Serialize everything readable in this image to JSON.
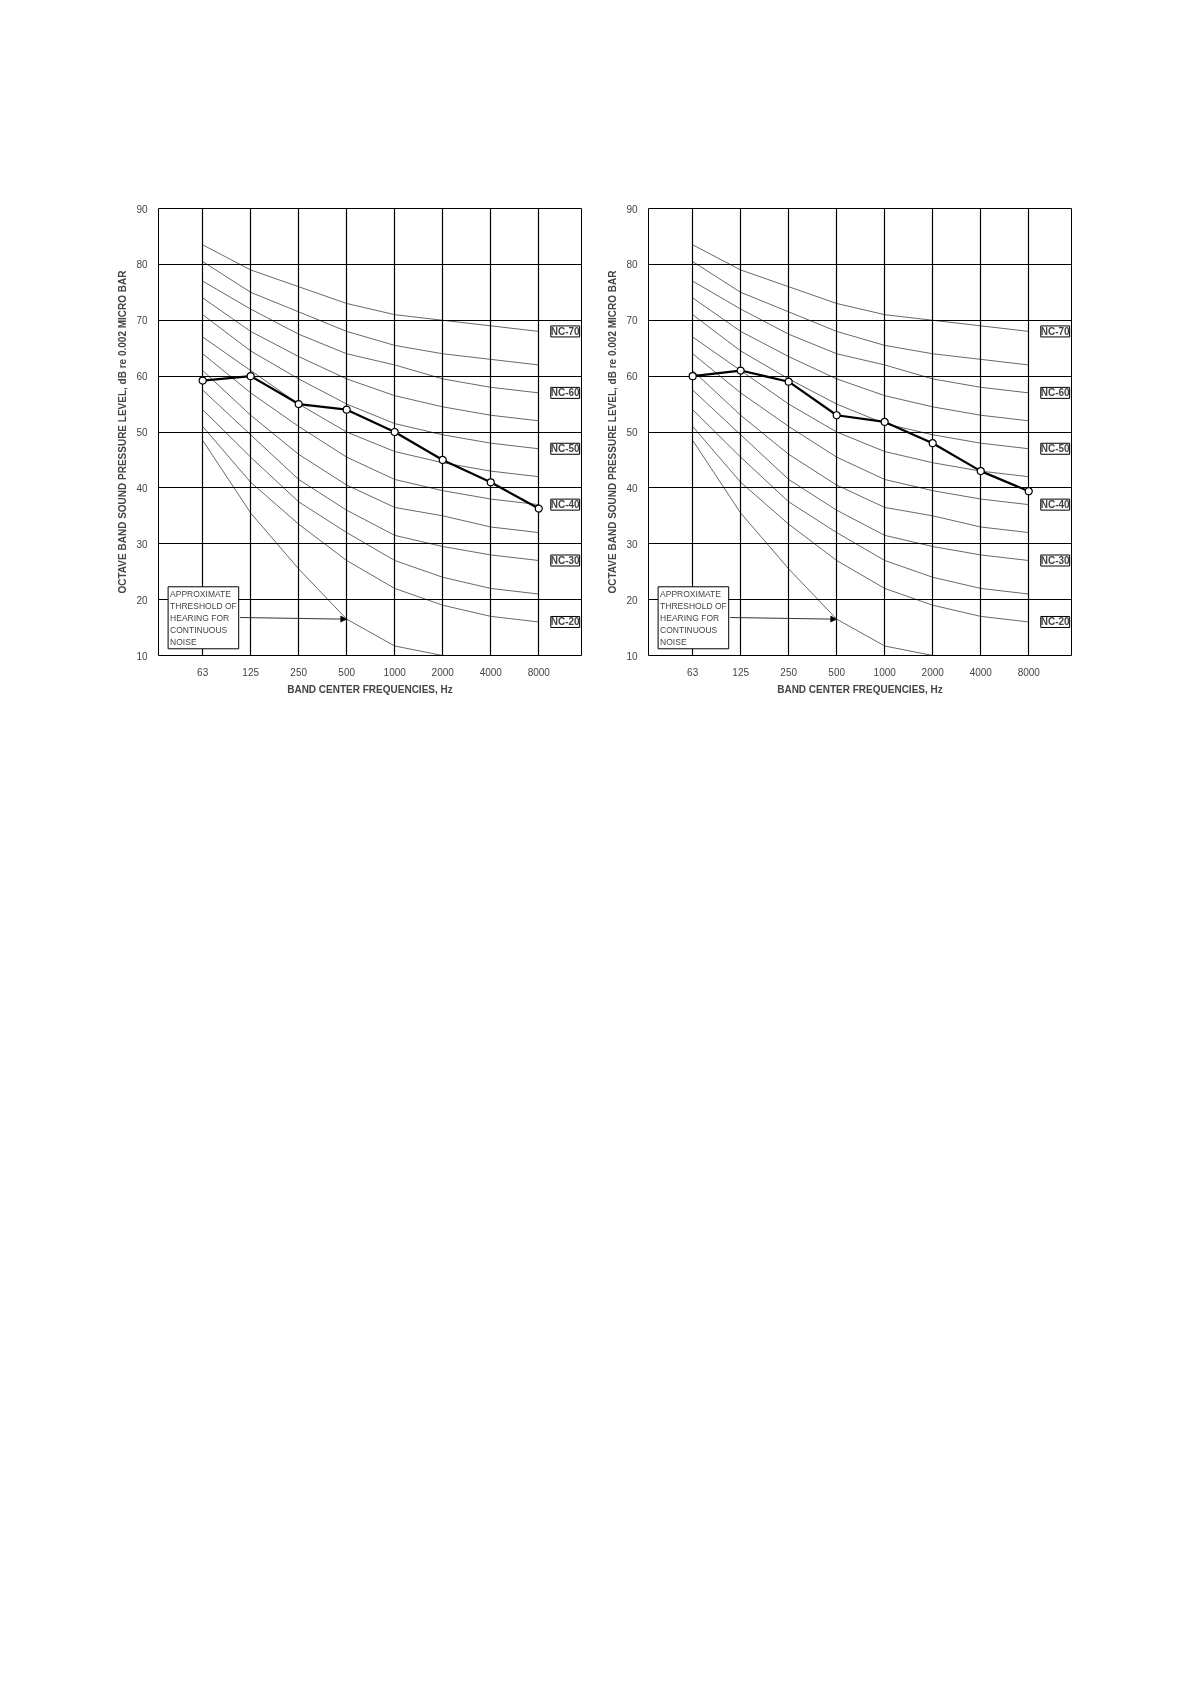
{
  "chart_data": [
    {
      "type": "line",
      "categories": [
        "63",
        "125",
        "250",
        "500",
        "1000",
        "2000",
        "4000",
        "8000"
      ],
      "xlabel": "BAND CENTER FREQUENCIES, Hz",
      "ylabel": "OCTAVE BAND SOUND PRESSURE LEVEL, dB re 0.002 MICRO BAR",
      "ylim": [
        10,
        90
      ],
      "yticks": [
        10,
        20,
        30,
        40,
        50,
        60,
        70,
        80,
        90
      ],
      "grid": true,
      "line_style": "solid",
      "annotations": [
        {
          "text": "APPROXIMATE THRESHOLD OF HEARING FOR CONTINUOUS NOISE",
          "x": "500",
          "y": 16.5
        }
      ],
      "series": [
        {
          "name": "NC-70",
          "color": "#000000",
          "marker": "none",
          "values": [
            83.5,
            79,
            76,
            73,
            71,
            70,
            69,
            68
          ]
        },
        {
          "color": "#000000",
          "marker": "none",
          "values": [
            80.5,
            75,
            71.5,
            68,
            65.5,
            64,
            63,
            62
          ]
        },
        {
          "name": "NC-60",
          "color": "#000000",
          "marker": "none",
          "values": [
            77,
            72,
            67.5,
            64,
            62,
            59.5,
            58,
            57
          ]
        },
        {
          "color": "#000000",
          "marker": "none",
          "values": [
            74,
            68,
            63.5,
            59.5,
            56.5,
            54.5,
            53,
            52
          ]
        },
        {
          "name": "NC-50",
          "color": "#000000",
          "marker": "none",
          "values": [
            71,
            64.5,
            59.5,
            55,
            51.5,
            49.5,
            48,
            47
          ]
        },
        {
          "color": "#000000",
          "marker": "none",
          "values": [
            67,
            61,
            55,
            50,
            46.5,
            44.5,
            43,
            42
          ]
        },
        {
          "name": "NC-40",
          "color": "#000000",
          "marker": "none",
          "values": [
            64,
            57,
            51,
            45.5,
            41.5,
            39.5,
            38,
            37
          ]
        },
        {
          "color": "#000000",
          "marker": "none",
          "values": [
            61,
            53,
            46,
            40.5,
            36.5,
            35,
            33,
            32
          ]
        },
        {
          "name": "NC-30",
          "color": "#000000",
          "marker": "none",
          "values": [
            57.5,
            49.5,
            41.5,
            36,
            31.5,
            29.5,
            28,
            27
          ]
        },
        {
          "color": "#000000",
          "marker": "none",
          "values": [
            54,
            45.5,
            37.5,
            32,
            27,
            24,
            22,
            21
          ]
        },
        {
          "name": "NC-20",
          "color": "#000000",
          "marker": "none",
          "values": [
            51,
            41,
            33.5,
            27,
            22,
            19,
            17,
            16
          ]
        },
        {
          "color": "#000000",
          "marker": "none",
          "values": [
            48.5,
            35.5,
            25.5,
            16.5,
            11.7,
            10,
            null,
            null
          ]
        },
        {
          "color": "#000000",
          "marker": "circle",
          "values": [
            59.2,
            60,
            55,
            54,
            50,
            45,
            41,
            36.3
          ]
        }
      ]
    },
    {
      "type": "line",
      "categories": [
        "63",
        "125",
        "250",
        "500",
        "1000",
        "2000",
        "4000",
        "8000"
      ],
      "xlabel": "BAND CENTER FREQUENCIES, Hz",
      "ylabel": "OCTAVE BAND SOUND PRESSURE LEVEL, dB re 0.002 MICRO BAR",
      "ylim": [
        10,
        90
      ],
      "yticks": [
        10,
        20,
        30,
        40,
        50,
        60,
        70,
        80,
        90
      ],
      "grid": true,
      "line_style": "solid",
      "annotations": [
        {
          "text": "APPROXIMATE THRESHOLD OF HEARING FOR CONTINUOUS NOISE",
          "x": "500",
          "y": 16.5
        }
      ],
      "series": [
        {
          "name": "NC-70",
          "color": "#000000",
          "marker": "none",
          "values": [
            83.5,
            79,
            76,
            73,
            71,
            70,
            69,
            68
          ]
        },
        {
          "color": "#000000",
          "marker": "none",
          "values": [
            80.5,
            75,
            71.5,
            68,
            65.5,
            64,
            63,
            62
          ]
        },
        {
          "name": "NC-60",
          "color": "#000000",
          "marker": "none",
          "values": [
            77,
            72,
            67.5,
            64,
            62,
            59.5,
            58,
            57
          ]
        },
        {
          "color": "#000000",
          "marker": "none",
          "values": [
            74,
            68,
            63.5,
            59.5,
            56.5,
            54.5,
            53,
            52
          ]
        },
        {
          "name": "NC-50",
          "color": "#000000",
          "marker": "none",
          "values": [
            71,
            64.5,
            59.5,
            55,
            51.5,
            49.5,
            48,
            47
          ]
        },
        {
          "color": "#000000",
          "marker": "none",
          "values": [
            67,
            61,
            55,
            50,
            46.5,
            44.5,
            43,
            42
          ]
        },
        {
          "name": "NC-40",
          "color": "#000000",
          "marker": "none",
          "values": [
            64,
            57,
            51,
            45.5,
            41.5,
            39.5,
            38,
            37
          ]
        },
        {
          "color": "#000000",
          "marker": "none",
          "values": [
            61,
            53,
            46,
            40.5,
            36.5,
            35,
            33,
            32
          ]
        },
        {
          "name": "NC-30",
          "color": "#000000",
          "marker": "none",
          "values": [
            57.5,
            49.5,
            41.5,
            36,
            31.5,
            29.5,
            28,
            27
          ]
        },
        {
          "color": "#000000",
          "marker": "none",
          "values": [
            54,
            45.5,
            37.5,
            32,
            27,
            24,
            22,
            21
          ]
        },
        {
          "name": "NC-20",
          "color": "#000000",
          "marker": "none",
          "values": [
            51,
            41,
            33.5,
            27,
            22,
            19,
            17,
            16
          ]
        },
        {
          "color": "#000000",
          "marker": "none",
          "values": [
            48.5,
            35.5,
            25.5,
            16.5,
            11.7,
            10,
            null,
            null
          ]
        },
        {
          "color": "#000000",
          "marker": "circle",
          "values": [
            60,
            61,
            59,
            53,
            51.8,
            48,
            43,
            39.4
          ]
        }
      ]
    }
  ]
}
